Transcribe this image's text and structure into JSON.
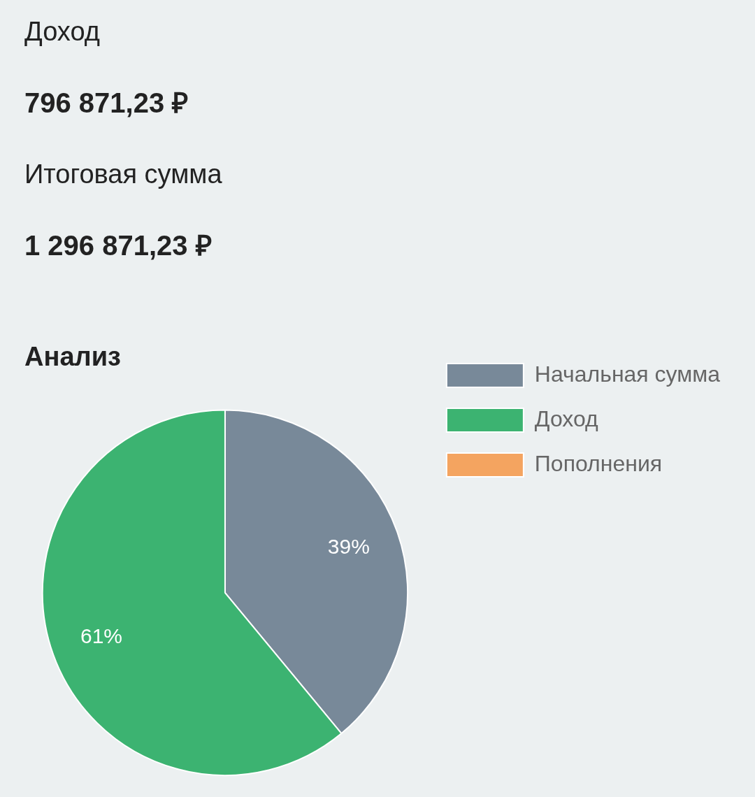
{
  "chart_data": [
    {
      "type": "other",
      "annotations": [
        "Доход",
        "796 871,23 ₽",
        "Итоговая сумма",
        "1 296 871,23 ₽"
      ]
    },
    {
      "type": "pie",
      "title": "Анализ",
      "categories": [
        "Начальная сумма",
        "Доход",
        "Пополнения"
      ],
      "values": [
        39,
        61,
        0
      ],
      "colors": [
        "#788999",
        "#3cb371",
        "#f4a460"
      ],
      "value_labels": [
        "39%",
        "61%",
        null
      ],
      "legend": "right"
    }
  ]
}
